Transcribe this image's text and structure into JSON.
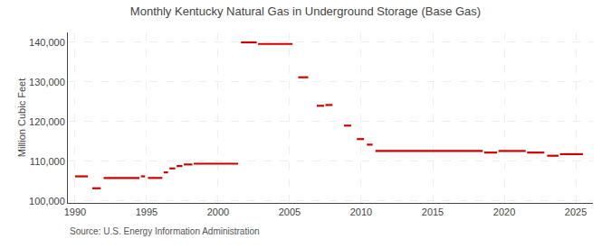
{
  "chart_data": {
    "type": "line",
    "title": "Monthly Kentucky Natural Gas in Underground Storage (Base Gas)",
    "ylabel": "Million Cubic Feet",
    "annotations": [
      "Source: U.S. Energy Information Administration"
    ],
    "color": "#cc0000",
    "grid": true,
    "xlim": [
      1989.5,
      2026.2
    ],
    "ylim": [
      99500,
      142500
    ],
    "xticks": [
      1990,
      1995,
      2000,
      2005,
      2010,
      2015,
      2020,
      2025
    ],
    "yticks": [
      {
        "value": 100000,
        "label": "100,000"
      },
      {
        "value": 110000,
        "label": "110,000"
      },
      {
        "value": 120000,
        "label": "120,000"
      },
      {
        "value": 130000,
        "label": "130,000"
      },
      {
        "value": 140000,
        "label": "140,000"
      }
    ],
    "x": [
      1990.0,
      1990.9,
      null,
      1991.2,
      1991.8,
      null,
      1992.0,
      1994.5,
      null,
      1994.6,
      1994.9,
      null,
      1995.1,
      1996.1,
      null,
      1996.2,
      1996.5,
      null,
      1996.6,
      1997.0,
      null,
      1997.1,
      1997.5,
      null,
      1997.6,
      1998.2,
      null,
      1998.3,
      2001.4,
      null,
      2001.6,
      2002.7,
      null,
      2002.8,
      2005.2,
      null,
      2005.6,
      2006.3,
      null,
      2006.9,
      2007.4,
      null,
      2007.5,
      2008.0,
      null,
      2008.8,
      2009.3,
      null,
      2009.7,
      2010.2,
      null,
      2010.4,
      2010.8,
      null,
      2011.0,
      2018.5,
      null,
      2018.6,
      2019.5,
      null,
      2019.6,
      2021.5,
      null,
      2021.6,
      2022.8,
      null,
      2023.0,
      2023.8,
      null,
      2023.9,
      2025.5
    ],
    "values": [
      106200,
      106200,
      null,
      103200,
      103200,
      null,
      105800,
      105800,
      null,
      106200,
      106200,
      null,
      105800,
      105800,
      null,
      107200,
      107200,
      null,
      108200,
      108200,
      null,
      108800,
      108800,
      null,
      109200,
      109200,
      null,
      109400,
      109400,
      null,
      140000,
      140000,
      null,
      139600,
      139600,
      null,
      131200,
      131200,
      null,
      124000,
      124000,
      null,
      124200,
      124200,
      null,
      119000,
      119000,
      null,
      115600,
      115600,
      null,
      114200,
      114200,
      null,
      112600,
      112600,
      null,
      112200,
      112200,
      null,
      112600,
      112600,
      null,
      112200,
      112200,
      null,
      111400,
      111400,
      null,
      111800,
      111800
    ]
  }
}
